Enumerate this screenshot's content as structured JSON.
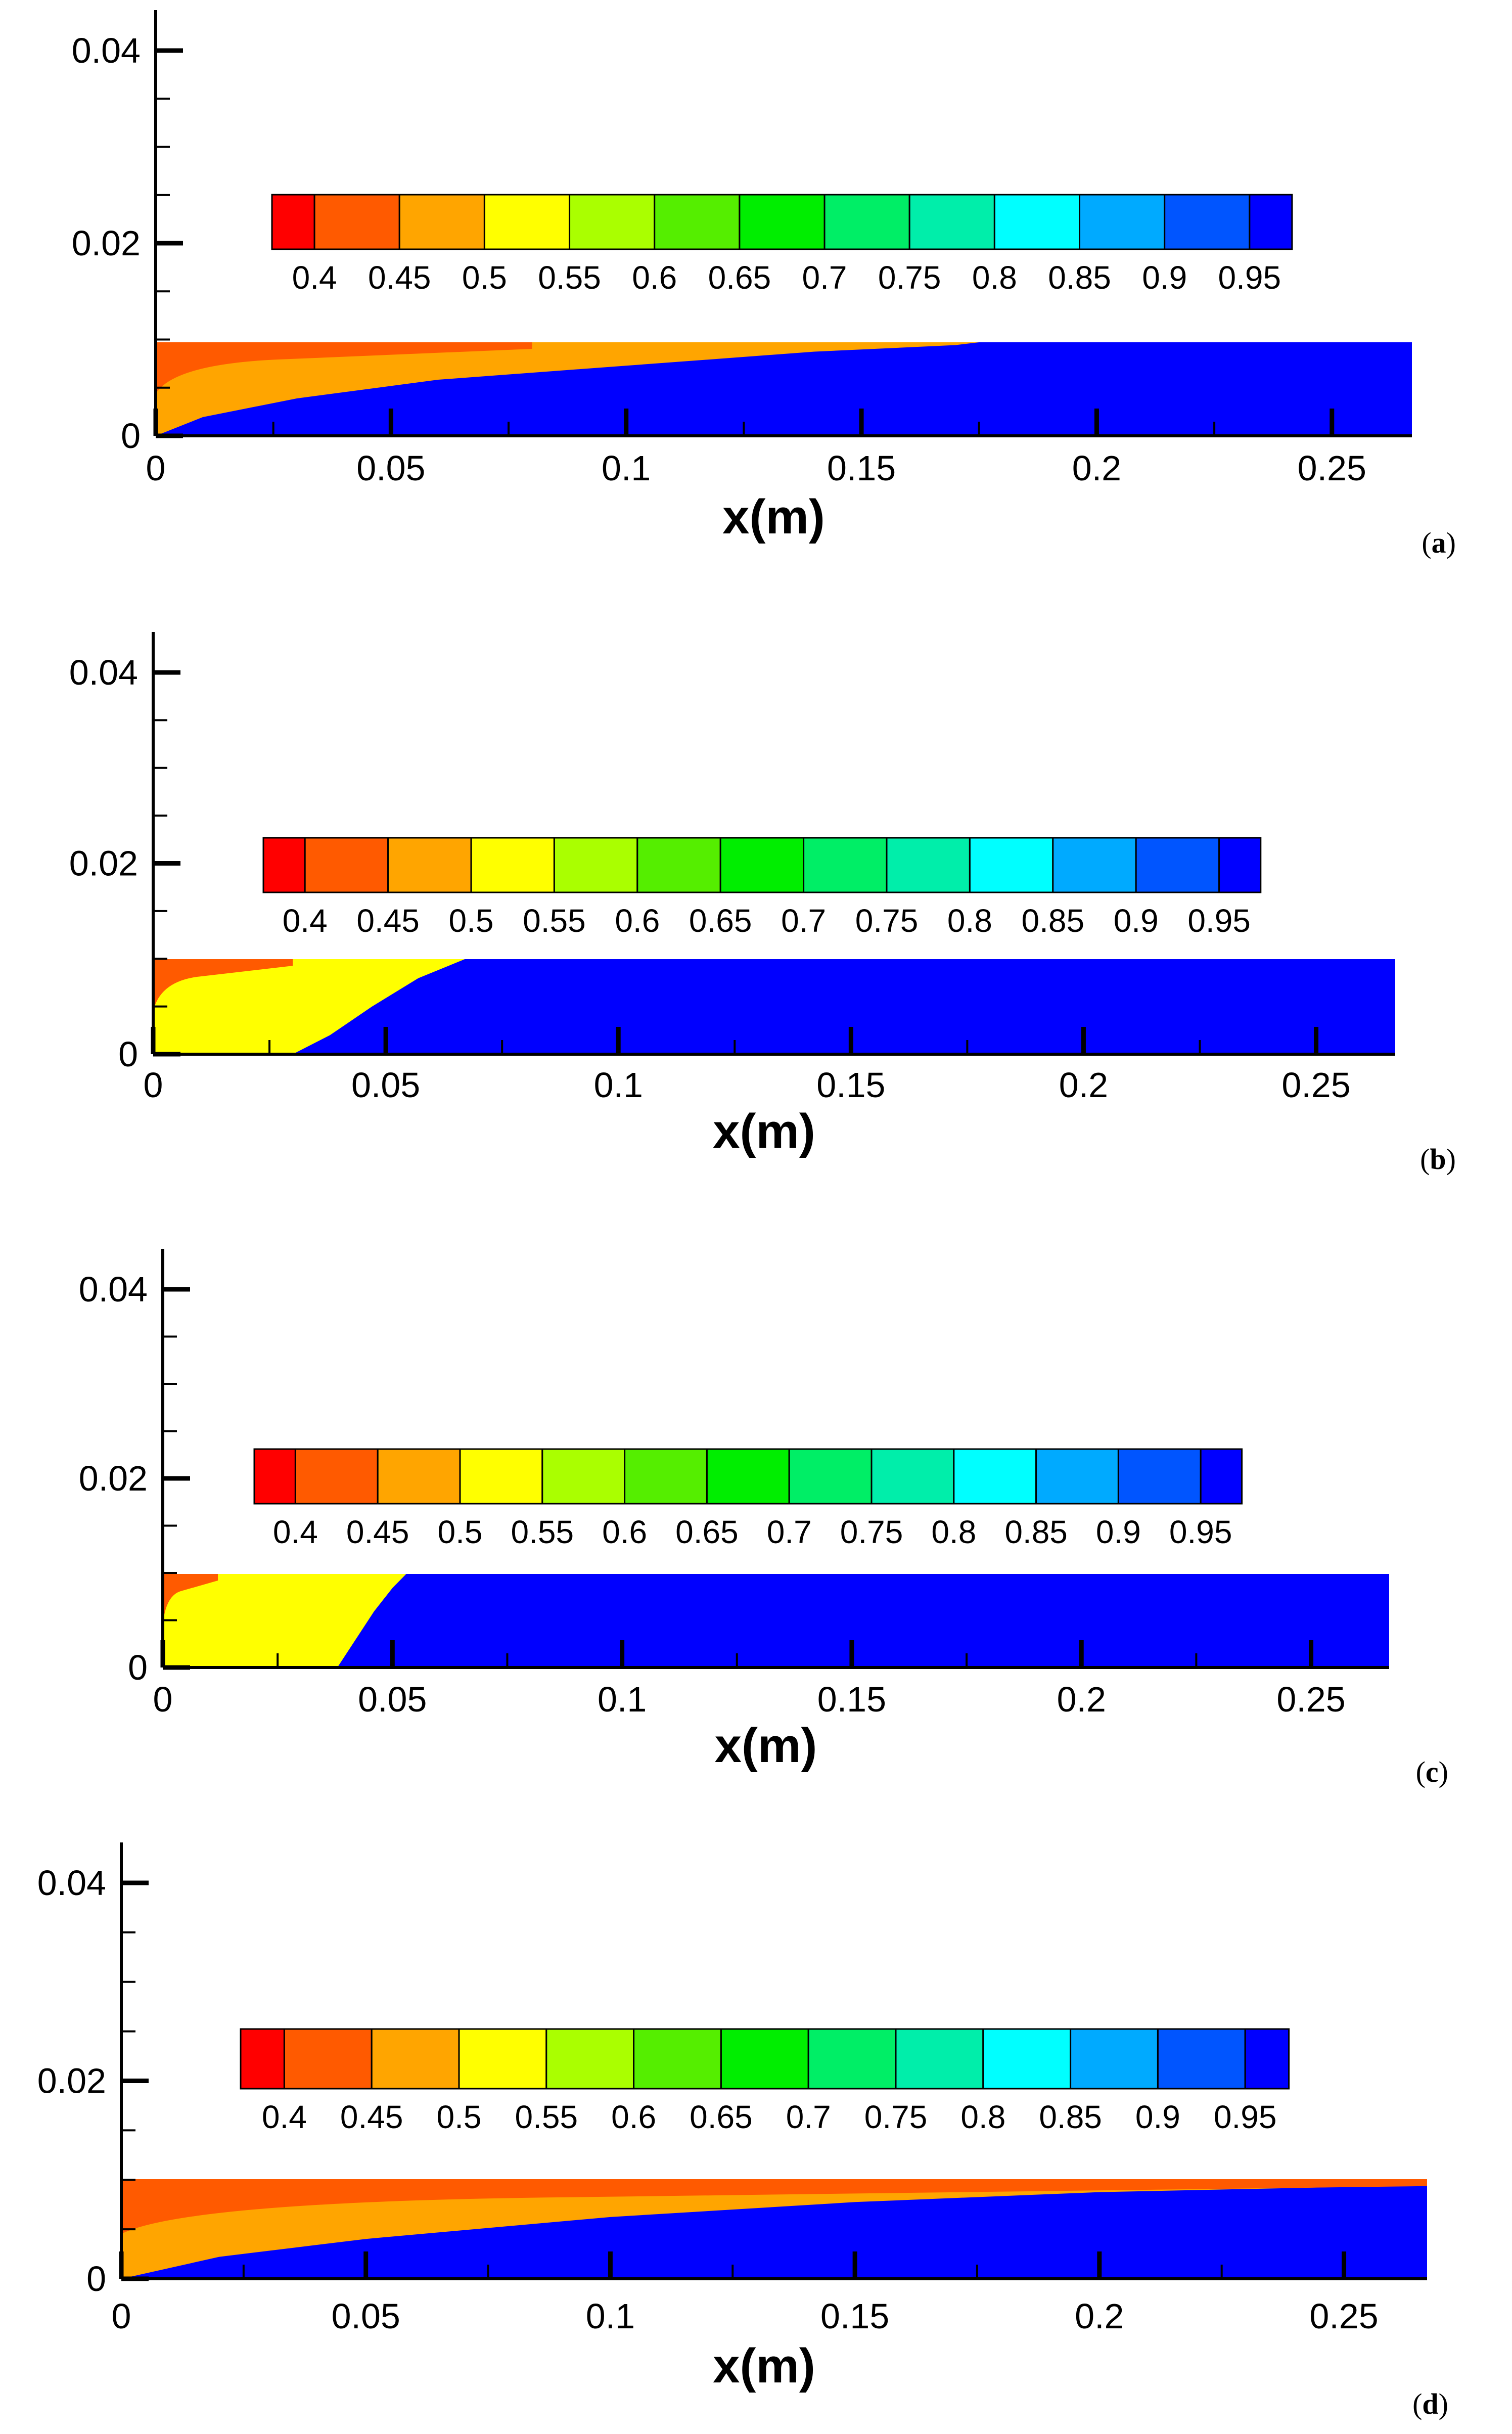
{
  "chart_data": [
    {
      "type": "heatmap",
      "panel_label": "a",
      "xlabel": "x(m)",
      "ylabel": "",
      "x_ticks": [
        "0",
        "0.05",
        "0.1",
        "0.15",
        "0.2",
        "0.25"
      ],
      "y_ticks": [
        "0",
        "0.02",
        "0.04"
      ],
      "xlim": [
        0,
        0.267
      ],
      "ylim": [
        0,
        0.041
      ],
      "domain_height": 0.01,
      "colorbar_levels": [
        "0.4",
        "0.45",
        "0.5",
        "0.55",
        "0.6",
        "0.65",
        "0.7",
        "0.75",
        "0.8",
        "0.85",
        "0.9",
        "0.95"
      ],
      "front_profile": [
        [
          0,
          0.0
        ],
        [
          0.01,
          0.002
        ],
        [
          0.03,
          0.004
        ],
        [
          0.06,
          0.006
        ],
        [
          0.1,
          0.0075
        ],
        [
          0.14,
          0.009
        ],
        [
          0.17,
          0.0097
        ],
        [
          0.175,
          0.01
        ]
      ],
      "interior_level": 0.45,
      "core_wall_level": 0.4,
      "core_wall_extent": 0.08
    },
    {
      "type": "heatmap",
      "panel_label": "b",
      "xlabel": "x(m)",
      "ylabel": "",
      "x_ticks": [
        "0",
        "0.05",
        "0.1",
        "0.15",
        "0.2",
        "0.25"
      ],
      "y_ticks": [
        "0",
        "0.02",
        "0.04"
      ],
      "xlim": [
        0,
        0.267
      ],
      "ylim": [
        0,
        0.041
      ],
      "domain_height": 0.01,
      "colorbar_levels": [
        "0.4",
        "0.45",
        "0.5",
        "0.55",
        "0.6",
        "0.65",
        "0.7",
        "0.75",
        "0.8",
        "0.85",
        "0.9",
        "0.95"
      ],
      "front_profile": [
        [
          0,
          0.0
        ],
        [
          0.03,
          0.0
        ],
        [
          0.038,
          0.002
        ],
        [
          0.047,
          0.005
        ],
        [
          0.057,
          0.008
        ],
        [
          0.067,
          0.01
        ]
      ],
      "interior_level": 0.5,
      "core_wall_level": 0.4,
      "core_wall_extent": 0.03
    },
    {
      "type": "heatmap",
      "panel_label": "c",
      "xlabel": "x(m)",
      "ylabel": "",
      "x_ticks": [
        "0",
        "0.05",
        "0.1",
        "0.15",
        "0.2",
        "0.25"
      ],
      "y_ticks": [
        "0",
        "0.02",
        "0.04"
      ],
      "xlim": [
        0,
        0.267
      ],
      "ylim": [
        0,
        0.041
      ],
      "domain_height": 0.01,
      "colorbar_levels": [
        "0.4",
        "0.45",
        "0.5",
        "0.55",
        "0.6",
        "0.65",
        "0.7",
        "0.75",
        "0.8",
        "0.85",
        "0.9",
        "0.95"
      ],
      "front_profile": [
        [
          0,
          0.0
        ],
        [
          0.038,
          0.0
        ],
        [
          0.042,
          0.003
        ],
        [
          0.046,
          0.006
        ],
        [
          0.05,
          0.0085
        ],
        [
          0.053,
          0.01
        ]
      ],
      "interior_level": 0.5,
      "core_wall_level": 0.4,
      "core_wall_extent": 0.012
    },
    {
      "type": "heatmap",
      "panel_label": "d",
      "xlabel": "x(m)",
      "ylabel": "",
      "x_ticks": [
        "0",
        "0.05",
        "0.1",
        "0.15",
        "0.2",
        "0.25"
      ],
      "y_ticks": [
        "0",
        "0.02",
        "0.04"
      ],
      "xlim": [
        0,
        0.267
      ],
      "ylim": [
        0,
        0.041
      ],
      "domain_height": 0.01,
      "colorbar_levels": [
        "0.4",
        "0.45",
        "0.5",
        "0.55",
        "0.6",
        "0.65",
        "0.7",
        "0.75",
        "0.8",
        "0.85",
        "0.9",
        "0.95"
      ],
      "front_profile": [
        [
          0,
          0.0
        ],
        [
          0.02,
          0.0022
        ],
        [
          0.05,
          0.004
        ],
        [
          0.1,
          0.0062
        ],
        [
          0.15,
          0.0077
        ],
        [
          0.2,
          0.0087
        ],
        [
          0.267,
          0.0094
        ]
      ],
      "interior_level": 0.45,
      "core_wall_level": 0.4,
      "core_wall_extent": 0.267
    }
  ],
  "colorbar_colors": [
    "#ff0000",
    "#ff5a00",
    "#ffa500",
    "#ffff00",
    "#aaff00",
    "#55ee00",
    "#00ee00",
    "#00ee66",
    "#00eeaa",
    "#00ffff",
    "#00aaff",
    "#0055ff",
    "#0000ff"
  ],
  "bulk_color": "#0000ff"
}
